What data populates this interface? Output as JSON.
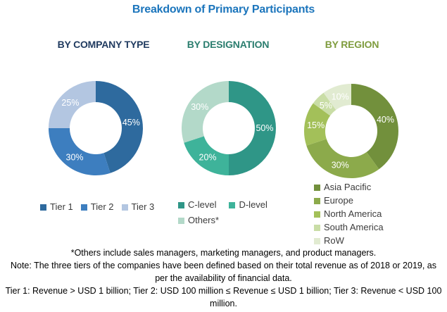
{
  "title": {
    "text": "Breakdown of Primary Participants",
    "color": "#1b75bc"
  },
  "chart_data": [
    {
      "type": "donut",
      "title": "BY COMPANY TYPE",
      "title_color": "#1f3a5f",
      "legend_layout": "row",
      "label_color": "#ffffff",
      "start_angle": 0,
      "slices": [
        {
          "label": "Tier 1",
          "value": 45,
          "color": "#2e6a9e"
        },
        {
          "label": "Tier 2",
          "value": 30,
          "color": "#3d7ebf"
        },
        {
          "label": "Tier 3",
          "value": 25,
          "color": "#b3c6e1"
        }
      ]
    },
    {
      "type": "donut",
      "title": "BY DESIGNATION",
      "title_color": "#2a7d6e",
      "legend_layout": "wrap",
      "label_color": "#ffffff",
      "start_angle": 0,
      "slices": [
        {
          "label": "C-level",
          "value": 50,
          "color": "#2f9687"
        },
        {
          "label": "D-level",
          "value": 20,
          "color": "#3eb39a"
        },
        {
          "label": "Others*",
          "value": 30,
          "color": "#b3d9c9"
        }
      ]
    },
    {
      "type": "donut",
      "title": "BY REGION",
      "title_color": "#7f9c3e",
      "legend_layout": "column",
      "label_color": "#ffffff",
      "start_angle": 0,
      "slices": [
        {
          "label": "Asia Pacific",
          "value": 40,
          "color": "#72903c"
        },
        {
          "label": "Europe",
          "value": 30,
          "color": "#8caa4b"
        },
        {
          "label": "North America",
          "value": 15,
          "color": "#a3c059"
        },
        {
          "label": "South America",
          "value": 5,
          "color": "#c9dda6"
        },
        {
          "label": "RoW",
          "value": 10,
          "color": "#e1ebd1"
        }
      ]
    }
  ],
  "footnotes": {
    "others": "*Others include sales managers, marketing managers, and product managers.",
    "note": "Note: The three tiers of the companies have been defined based on their total revenue as of 2018 or 2019, as per the availability of financial data.",
    "tiers": "Tier 1: Revenue > USD 1 billion; Tier 2: USD 100 million ≤ Revenue ≤ USD 1 billion; Tier 3: Revenue < USD 100 million."
  }
}
